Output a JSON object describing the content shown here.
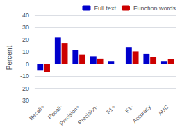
{
  "chart_data": {
    "type": "bar",
    "ylabel": "Percent",
    "categories": [
      "Recall+",
      "Recall-",
      "Precision+",
      "Precision-",
      "F1+",
      "F1-",
      "Accuracy",
      "AUC"
    ],
    "series": [
      {
        "name": "Full text",
        "color": "#0000cc",
        "values": [
          -5.5,
          22.0,
          11.5,
          6.5,
          2.0,
          13.5,
          8.5,
          2.0
        ]
      },
      {
        "name": "Function words",
        "color": "#cc0000",
        "values": [
          -6.5,
          17.0,
          7.5,
          4.5,
          0.2,
          10.5,
          6.0,
          4.0
        ]
      }
    ],
    "ylim": [
      -30,
      40
    ],
    "yticks": [
      -30,
      -20,
      -10,
      0,
      10,
      20,
      30,
      40
    ],
    "grid": true,
    "legend": "upper right"
  }
}
